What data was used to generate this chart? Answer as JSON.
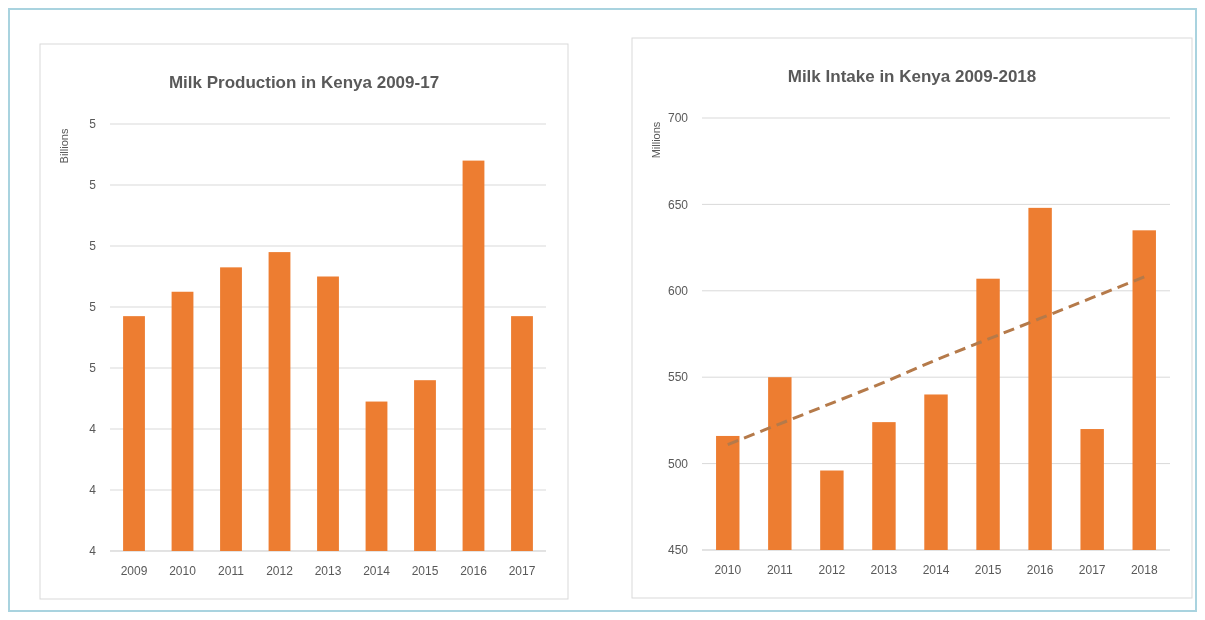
{
  "chart_data": [
    {
      "type": "bar",
      "title": "Milk Production in Kenya 2009-17",
      "ylabel": "Billions",
      "categories": [
        "2009",
        "2010",
        "2011",
        "2012",
        "2013",
        "2014",
        "2015",
        "2016",
        "2017"
      ],
      "series": [
        {
          "color": "#ed7d31",
          "values": [
            4.77,
            4.85,
            4.93,
            4.98,
            4.9,
            4.49,
            4.56,
            5.28,
            4.77
          ]
        }
      ],
      "ylim": [
        4.0,
        5.4
      ],
      "yticks": [
        {
          "value": 4.0,
          "label": "4"
        },
        {
          "value": 4.2,
          "label": "4"
        },
        {
          "value": 4.4,
          "label": "4"
        },
        {
          "value": 4.6,
          "label": "5"
        },
        {
          "value": 4.8,
          "label": "5"
        },
        {
          "value": 5.0,
          "label": "5"
        },
        {
          "value": 5.2,
          "label": "5"
        },
        {
          "value": 5.4,
          "label": "5"
        }
      ],
      "grid": "y"
    },
    {
      "type": "bar",
      "title": "Milk Intake in Kenya 2009-2018",
      "ylabel": "Millions",
      "categories": [
        "2010",
        "2011",
        "2012",
        "2013",
        "2014",
        "2015",
        "2016",
        "2017",
        "2018"
      ],
      "series": [
        {
          "color": "#ed7d31",
          "values": [
            516,
            550,
            496,
            524,
            540,
            607,
            648,
            520,
            635
          ]
        },
        {
          "type": "line",
          "color": "#b57a4a",
          "line_style": "dashed",
          "values": [
            511,
            523,
            535,
            547,
            560,
            572,
            584,
            596,
            608
          ]
        }
      ],
      "ylim": [
        450,
        700
      ],
      "yticks": [
        450,
        500,
        550,
        600,
        650,
        700
      ],
      "grid": "y"
    }
  ]
}
